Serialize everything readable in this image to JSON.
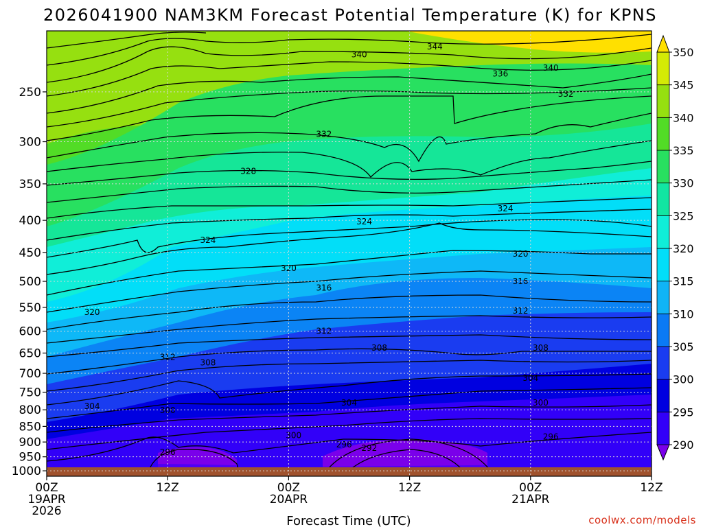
{
  "chart_data": {
    "type": "heatmap",
    "title": "2026041900 NAM3KM Forecast Potential Temperature (K) for KPNS",
    "xlabel": "Forecast Time (UTC)",
    "ylabel": "",
    "credit": "coolwx.com/models",
    "x_range_hours": [
      0,
      60
    ],
    "x_ticks": [
      {
        "hour": 0,
        "lines": [
          "00Z",
          "19APR",
          "2026"
        ]
      },
      {
        "hour": 12,
        "lines": [
          "12Z"
        ]
      },
      {
        "hour": 24,
        "lines": [
          "00Z",
          "20APR"
        ]
      },
      {
        "hour": 36,
        "lines": [
          "12Z"
        ]
      },
      {
        "hour": 48,
        "lines": [
          "00Z",
          "21APR"
        ]
      },
      {
        "hour": 60,
        "lines": [
          "12Z"
        ]
      }
    ],
    "y_axis": "pressure (hPa), log scale, inverted",
    "ylim": [
      1020,
      200
    ],
    "y_ticks": [
      250,
      300,
      350,
      400,
      450,
      500,
      550,
      600,
      650,
      700,
      750,
      800,
      850,
      900,
      950,
      1000
    ],
    "colorbar": {
      "levels": [
        290,
        295,
        300,
        305,
        310,
        315,
        320,
        325,
        330,
        335,
        340,
        345,
        350
      ],
      "labels": [
        "290",
        "295",
        "300",
        "305",
        "310",
        "315",
        "320",
        "325",
        "330",
        "335",
        "340",
        "345",
        "350"
      ],
      "colors": [
        "#7a00ea",
        "#3200f8",
        "#0000e0",
        "#1a3cf0",
        "#0a7af5",
        "#10b4f6",
        "#02def8",
        "#10eed8",
        "#12e6a2",
        "#28e060",
        "#52dc26",
        "#96e010",
        "#d4ea06",
        "#ffe000"
      ]
    },
    "contour_interval_k": 2,
    "contour_labels": [
      {
        "value": "344",
        "hour": 38.5,
        "p": 212
      },
      {
        "value": "340",
        "hour": 31.0,
        "p": 218
      },
      {
        "value": "340",
        "hour": 50.0,
        "p": 229
      },
      {
        "value": "336",
        "hour": 45.0,
        "p": 234
      },
      {
        "value": "332",
        "hour": 51.5,
        "p": 252
      },
      {
        "value": "332",
        "hour": 27.5,
        "p": 292
      },
      {
        "value": "328",
        "hour": 20.0,
        "p": 334
      },
      {
        "value": "324",
        "hour": 45.5,
        "p": 383
      },
      {
        "value": "324",
        "hour": 31.5,
        "p": 402
      },
      {
        "value": "324",
        "hour": 16.0,
        "p": 430
      },
      {
        "value": "320",
        "hour": 47.0,
        "p": 452
      },
      {
        "value": "320",
        "hour": 24.0,
        "p": 477
      },
      {
        "value": "316",
        "hour": 47.0,
        "p": 500
      },
      {
        "value": "316",
        "hour": 27.5,
        "p": 512
      },
      {
        "value": "320",
        "hour": 4.5,
        "p": 560
      },
      {
        "value": "312",
        "hour": 47.0,
        "p": 557
      },
      {
        "value": "312",
        "hour": 27.5,
        "p": 600
      },
      {
        "value": "308",
        "hour": 33.0,
        "p": 638
      },
      {
        "value": "308",
        "hour": 49.0,
        "p": 638
      },
      {
        "value": "312",
        "hour": 12.0,
        "p": 660
      },
      {
        "value": "308",
        "hour": 16.0,
        "p": 673
      },
      {
        "value": "304",
        "hour": 48.0,
        "p": 712
      },
      {
        "value": "304",
        "hour": 30.0,
        "p": 780
      },
      {
        "value": "304",
        "hour": 4.5,
        "p": 790
      },
      {
        "value": "300",
        "hour": 49.0,
        "p": 780
      },
      {
        "value": "300",
        "hour": 12.0,
        "p": 802
      },
      {
        "value": "300",
        "hour": 24.5,
        "p": 878
      },
      {
        "value": "296",
        "hour": 50.0,
        "p": 883
      },
      {
        "value": "296",
        "hour": 29.5,
        "p": 909
      },
      {
        "value": "292",
        "hour": 32.0,
        "p": 920
      },
      {
        "value": "296",
        "hour": 12.0,
        "p": 934
      }
    ]
  }
}
